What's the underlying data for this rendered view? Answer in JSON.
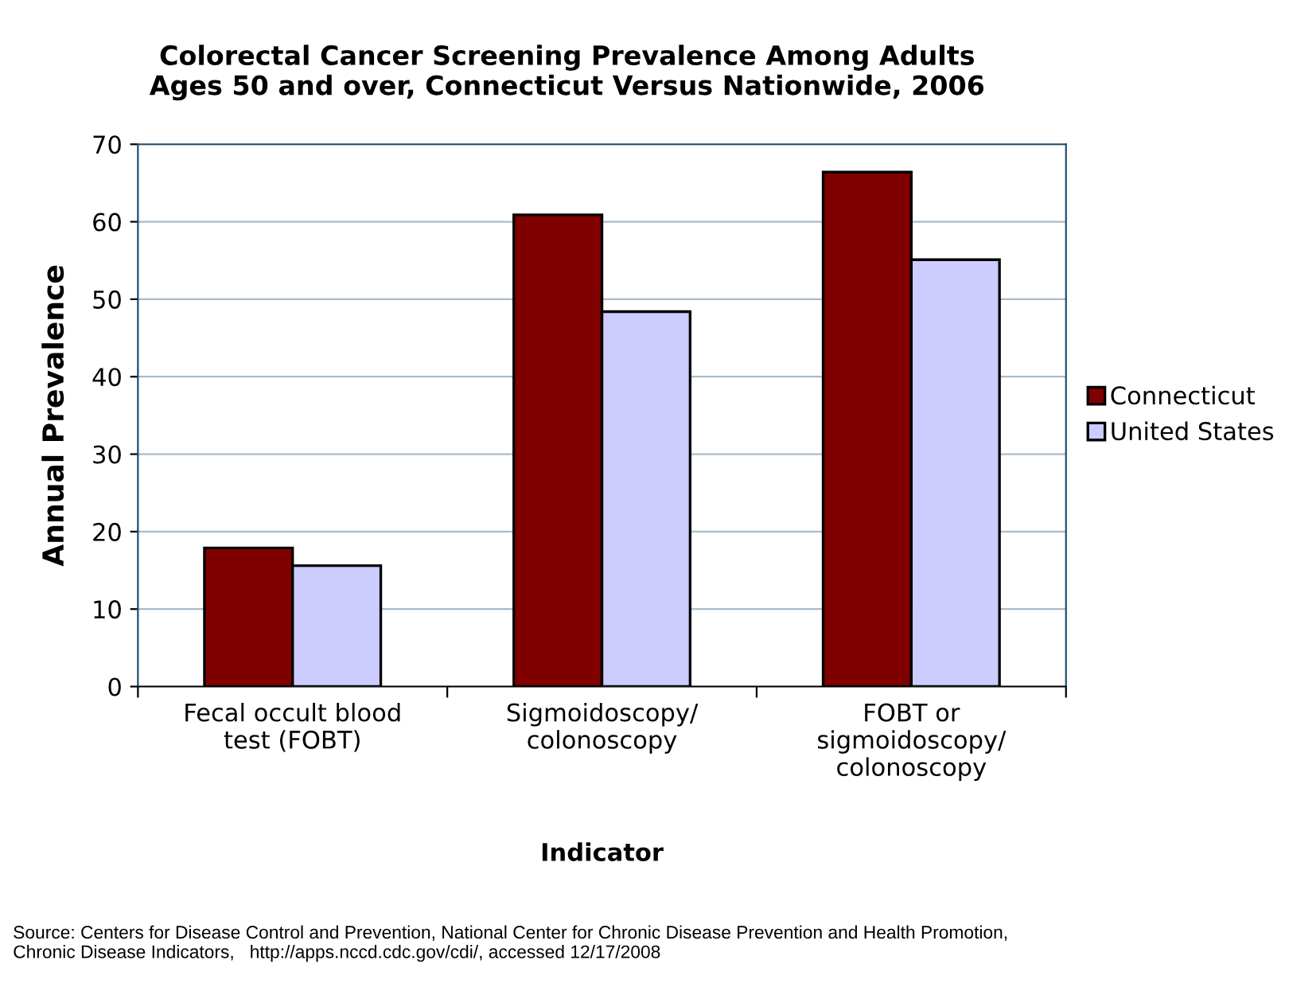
{
  "chart_data": {
    "type": "bar",
    "title": "Colorectal Cancer Screening Prevalence Among Adults\nAges 50 and over, Connecticut Versus Nationwide, 2006",
    "xlabel": "Indicator",
    "ylabel": "Annual Prevalence",
    "categories": [
      "Fecal occult blood\ntest (FOBT)",
      "Sigmoidoscopy/\ncolonoscopy",
      "FOBT or\nsigmoidoscopy/\ncolonoscopy"
    ],
    "series": [
      {
        "name": "Connecticut",
        "color": "#800000",
        "values": [
          17.9,
          60.9,
          66.4
        ]
      },
      {
        "name": "United States",
        "color": "#ccccff",
        "values": [
          15.6,
          48.4,
          55.1
        ]
      }
    ],
    "ylim": [
      0,
      70
    ],
    "yticks": [
      0,
      10,
      20,
      30,
      40,
      50,
      60,
      70
    ],
    "grid": "y",
    "legend": "right",
    "annotations": [
      "Source: Centers for Disease Control and Prevention, National Center for Chronic Disease Prevention and Health Promotion,\nChronic Disease Indicators,   http://apps.nccd.cdc.gov/cdi/, accessed 12/17/2008"
    ]
  }
}
